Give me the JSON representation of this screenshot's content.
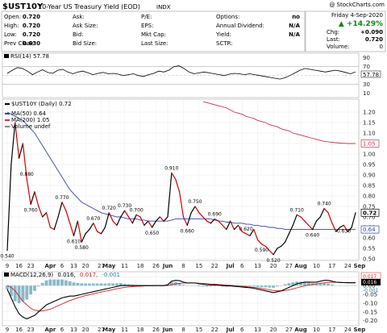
{
  "header": {
    "symbol": "$UST10Y",
    "name": "10-Year US Treasury Yield (EOD)",
    "exchange": "INDX",
    "watermark": "@ StockCharts.com",
    "date": "Friday  4-Sep-2020",
    "change_pct": "▲ +14.29%",
    "change_label": "Chg:",
    "change_value": "+0.090",
    "last_label": "Last:",
    "last_value": "0.720",
    "volume_label": "Volume:",
    "volume_value": "0"
  },
  "quote_cols": [
    {
      "labels": [
        "Open:",
        "High:",
        "Low:",
        "Prev Close:"
      ],
      "values": [
        "0.720",
        "0.720",
        "0.720",
        "0.630"
      ]
    },
    {
      "labels": [
        "Ask:",
        "Ask Size:",
        "Bid:",
        "Bid Size:"
      ],
      "values": [
        "",
        "",
        "",
        ""
      ]
    },
    {
      "labels": [
        "P/E:",
        "EPS:",
        "Mkt Cap:",
        "Last Size:"
      ],
      "values": [
        "",
        "",
        "",
        ""
      ]
    },
    {
      "labels": [
        "Options:",
        "Annual Dividend:",
        "Yield:",
        "SCTR:"
      ],
      "values": [
        "no",
        "N/A",
        "N/A",
        ""
      ]
    }
  ],
  "rsi": {
    "label": "RSI(14) 57.78",
    "axis_ticks": [
      "90",
      "70",
      "50",
      "30",
      "10"
    ],
    "value_tag": "57.78",
    "overbought": 70,
    "oversold": 30,
    "series": [
      55,
      62,
      68,
      66,
      60,
      52,
      58,
      63,
      57,
      55,
      62,
      64,
      58,
      54,
      58,
      60,
      56,
      52,
      55,
      57,
      54,
      55,
      53,
      50,
      52,
      54,
      50,
      48,
      52,
      55,
      60,
      58,
      62,
      70,
      72,
      66,
      58,
      54,
      56,
      58,
      56,
      54,
      52,
      50,
      53,
      55,
      54,
      52,
      54,
      52,
      50,
      48,
      46,
      44,
      42,
      45,
      50,
      56,
      62,
      66,
      64,
      62,
      60,
      58,
      60,
      62,
      60,
      57,
      54,
      58
    ]
  },
  "legend": {
    "price": "$UST10Y (Daily) 0.72",
    "ma50": "MA(50) 0.64",
    "ma200": "MA(200) 1.05",
    "volume": "Volume undef"
  },
  "colors": {
    "price_up": "#000000",
    "price_down": "#cc0000",
    "ma50": "#3344aa",
    "ma200": "#cc3344",
    "macd_line": "#000000",
    "macd_signal": "#cc2222",
    "macd_hist": "#2a7f9e",
    "tag_ma50": "#3344aa",
    "tag_ma200": "#cc3344",
    "up_arrow": "#118811"
  },
  "chart_data": {
    "type": "line",
    "title": "$UST10Y 10-Year US Treasury Yield (EOD)",
    "ylim": [
      0.5,
      1.25
    ],
    "y_ticks": [
      "1.20",
      "1.15",
      "1.10",
      "1.05",
      "1.00",
      "0.95",
      "0.90",
      "0.85",
      "0.80",
      "0.75",
      "0.70",
      "0.65",
      "0.60",
      "0.55",
      "0.50"
    ],
    "x_tick_labels": [
      "9",
      "16",
      "23",
      "Apr",
      "6",
      "13",
      "20",
      "27",
      "May",
      "11",
      "18",
      "26",
      "Jun",
      "8",
      "15",
      "22",
      "Jul",
      "6",
      "13",
      "20",
      "27",
      "Aug",
      "10",
      "17",
      "24",
      "Sep"
    ],
    "x_tick_index": [
      0,
      3,
      6,
      11,
      14,
      17,
      20,
      24,
      26,
      30,
      34,
      38,
      41,
      45,
      49,
      53,
      57,
      60,
      64,
      68,
      72,
      75,
      79,
      83,
      87,
      90
    ],
    "series": [
      {
        "name": "$UST10Y (Daily)",
        "values": [
          0.54,
          0.95,
          1.15,
          0.98,
          1.05,
          0.88,
          0.76,
          0.82,
          0.75,
          0.7,
          0.72,
          0.65,
          0.64,
          0.7,
          0.77,
          0.73,
          0.67,
          0.61,
          0.68,
          0.58,
          0.62,
          0.64,
          0.67,
          0.63,
          0.62,
          0.65,
          0.72,
          0.68,
          0.66,
          0.7,
          0.73,
          0.7,
          0.67,
          0.71,
          0.7,
          0.66,
          0.68,
          0.65,
          0.68,
          0.7,
          0.68,
          0.7,
          0.91,
          0.88,
          0.82,
          0.7,
          0.66,
          0.72,
          0.75,
          0.72,
          0.7,
          0.68,
          0.67,
          0.69,
          0.68,
          0.66,
          0.64,
          0.68,
          0.64,
          0.66,
          0.63,
          0.62,
          0.61,
          0.64,
          0.59,
          0.57,
          0.56,
          0.54,
          0.52,
          0.55,
          0.56,
          0.58,
          0.62,
          0.66,
          0.71,
          0.7,
          0.68,
          0.66,
          0.64,
          0.68,
          0.7,
          0.74,
          0.72,
          0.67,
          0.63,
          0.65,
          0.66,
          0.63,
          0.65,
          0.72
        ]
      },
      {
        "name": "MA(50)",
        "values": [
          1.2,
          1.19,
          1.18,
          1.17,
          1.16,
          1.14,
          1.12,
          1.1,
          1.07,
          1.04,
          1.01,
          0.98,
          0.95,
          0.92,
          0.89,
          0.86,
          0.83,
          0.81,
          0.79,
          0.77,
          0.76,
          0.75,
          0.74,
          0.73,
          0.72,
          0.715,
          0.71,
          0.705,
          0.7,
          0.7,
          0.695,
          0.69,
          0.69,
          0.69,
          0.685,
          0.685,
          0.68,
          0.68,
          0.68,
          0.68,
          0.68,
          0.68,
          0.685,
          0.69,
          0.69,
          0.69,
          0.69,
          0.69,
          0.69,
          0.69,
          0.69,
          0.69,
          0.69,
          0.685,
          0.68,
          0.68,
          0.675,
          0.675,
          0.67,
          0.67,
          0.67,
          0.665,
          0.665,
          0.66,
          0.66,
          0.655,
          0.655,
          0.65,
          0.65,
          0.645,
          0.645,
          0.64,
          0.64,
          0.64,
          0.64,
          0.64,
          0.64,
          0.64,
          0.64,
          0.64,
          0.64,
          0.64,
          0.64,
          0.64,
          0.64,
          0.64,
          0.64,
          0.64,
          0.64,
          0.64
        ]
      },
      {
        "name": "MA(200)",
        "values": [
          null,
          null,
          null,
          null,
          null,
          null,
          null,
          null,
          null,
          null,
          null,
          null,
          null,
          null,
          null,
          null,
          null,
          null,
          null,
          null,
          null,
          null,
          null,
          null,
          null,
          null,
          null,
          null,
          null,
          null,
          null,
          null,
          null,
          null,
          null,
          null,
          null,
          null,
          null,
          null,
          null,
          null,
          null,
          null,
          null,
          null,
          null,
          null,
          null,
          null,
          1.25,
          1.245,
          1.24,
          1.235,
          1.23,
          1.225,
          1.22,
          1.21,
          1.2,
          1.195,
          1.19,
          1.18,
          1.175,
          1.17,
          1.16,
          1.155,
          1.15,
          1.14,
          1.135,
          1.13,
          1.12,
          1.115,
          1.11,
          1.1,
          1.095,
          1.09,
          1.085,
          1.08,
          1.075,
          1.07,
          1.065,
          1.06,
          1.058,
          1.056,
          1.054,
          1.052,
          1.051,
          1.05,
          1.05,
          1.05
        ]
      }
    ],
    "annotations": [
      {
        "i": 0,
        "label": "0.540",
        "pos": "below"
      },
      {
        "i": 5,
        "label": "0.880",
        "pos": "above"
      },
      {
        "i": 6,
        "label": "0.760",
        "pos": "below"
      },
      {
        "i": 14,
        "label": "0.770",
        "pos": "above"
      },
      {
        "i": 17,
        "label": "0.610",
        "pos": "below"
      },
      {
        "i": 19,
        "label": "0.580",
        "pos": "below"
      },
      {
        "i": 22,
        "label": "0.670",
        "pos": "above"
      },
      {
        "i": 26,
        "label": "0.720",
        "pos": "above"
      },
      {
        "i": 30,
        "label": "0.730",
        "pos": "above"
      },
      {
        "i": 33,
        "label": "0.700",
        "pos": "above"
      },
      {
        "i": 37,
        "label": "0.650",
        "pos": "below"
      },
      {
        "i": 42,
        "label": "0.910",
        "pos": "above"
      },
      {
        "i": 46,
        "label": "0.660",
        "pos": "below"
      },
      {
        "i": 48,
        "label": "0.750",
        "pos": "above"
      },
      {
        "i": 53,
        "label": "0.690",
        "pos": "above"
      },
      {
        "i": 61,
        "label": "0.620",
        "pos": "above"
      },
      {
        "i": 65,
        "label": "0.590",
        "pos": "below"
      },
      {
        "i": 68,
        "label": "0.520",
        "pos": "below"
      },
      {
        "i": 74,
        "label": "0.710",
        "pos": "above"
      },
      {
        "i": 78,
        "label": "0.640",
        "pos": "below"
      },
      {
        "i": 81,
        "label": "0.740",
        "pos": "above"
      },
      {
        "i": 86,
        "label": "0.630",
        "pos": "below"
      }
    ],
    "value_tags": [
      {
        "value": 0.72,
        "label": "0.72",
        "series": "price"
      },
      {
        "value": 1.05,
        "label": "1.05",
        "series": "ma200"
      },
      {
        "value": 0.64,
        "label": "0.64",
        "series": "ma50"
      }
    ]
  },
  "macd": {
    "label_prefix": "MACD(12,26,9)",
    "v1": "0.016,",
    "v2": "0.017,",
    "v3": "-0.001",
    "tag1": "0.017",
    "tag2": "0.016",
    "tag3": "-0.001",
    "axis_ticks": [
      "0.05",
      "0.00",
      "-0.05",
      "-0.10",
      "-0.15",
      "-0.20"
    ],
    "ylim": [
      -0.22,
      0.07
    ],
    "macd": [
      -0.02,
      -0.07,
      -0.12,
      -0.16,
      -0.18,
      -0.19,
      -0.18,
      -0.17,
      -0.15,
      -0.13,
      -0.11,
      -0.1,
      -0.09,
      -0.08,
      -0.07,
      -0.065,
      -0.06,
      -0.06,
      -0.055,
      -0.05,
      -0.045,
      -0.04,
      -0.035,
      -0.03,
      -0.025,
      -0.02,
      -0.015,
      -0.01,
      -0.005,
      0.0,
      0.0,
      0.0,
      0.0,
      0.0,
      0.0,
      0.0,
      0.0,
      0.0,
      0.0,
      0.0,
      0.0,
      0.005,
      0.025,
      0.03,
      0.028,
      0.02,
      0.015,
      0.015,
      0.015,
      0.01,
      0.008,
      0.005,
      0.004,
      0.004,
      0.003,
      0.0,
      -0.002,
      -0.002,
      -0.004,
      -0.006,
      -0.008,
      -0.01,
      -0.012,
      -0.015,
      -0.02,
      -0.025,
      -0.03,
      -0.035,
      -0.04,
      -0.035,
      -0.03,
      -0.02,
      -0.01,
      0.0,
      0.01,
      0.015,
      0.02,
      0.02,
      0.02,
      0.02,
      0.025,
      0.03,
      0.03,
      0.025,
      0.02,
      0.018,
      0.017,
      0.016,
      0.016,
      0.016
    ],
    "signal": [
      0.0,
      -0.01,
      -0.03,
      -0.06,
      -0.09,
      -0.11,
      -0.13,
      -0.14,
      -0.145,
      -0.145,
      -0.14,
      -0.135,
      -0.125,
      -0.115,
      -0.105,
      -0.095,
      -0.085,
      -0.078,
      -0.07,
      -0.063,
      -0.057,
      -0.052,
      -0.047,
      -0.042,
      -0.037,
      -0.032,
      -0.028,
      -0.023,
      -0.018,
      -0.014,
      -0.01,
      -0.008,
      -0.006,
      -0.004,
      -0.003,
      -0.002,
      -0.001,
      -0.001,
      0.0,
      0.0,
      0.0,
      0.0,
      0.005,
      0.01,
      0.013,
      0.015,
      0.015,
      0.015,
      0.015,
      0.014,
      0.013,
      0.011,
      0.009,
      0.008,
      0.006,
      0.005,
      0.003,
      0.002,
      0.0,
      -0.002,
      -0.004,
      -0.006,
      -0.008,
      -0.01,
      -0.013,
      -0.016,
      -0.02,
      -0.024,
      -0.028,
      -0.03,
      -0.03,
      -0.028,
      -0.024,
      -0.019,
      -0.013,
      -0.007,
      -0.002,
      0.003,
      0.007,
      0.01,
      0.013,
      0.016,
      0.018,
      0.019,
      0.019,
      0.019,
      0.018,
      0.018,
      0.017,
      0.017
    ]
  }
}
